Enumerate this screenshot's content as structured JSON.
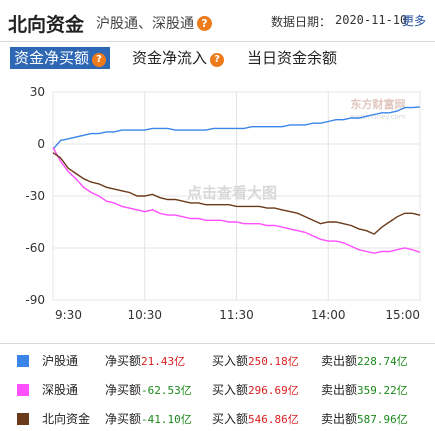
{
  "header": {
    "title": "北向资金",
    "subtitle": "沪股通、深股通",
    "date_label": "数据日期：",
    "date": "2020-11-10",
    "more": "更多"
  },
  "tabs": [
    {
      "label": "资金净买额",
      "active": true
    },
    {
      "label": "资金净流入",
      "active": false
    },
    {
      "label": "当日资金余额",
      "active": false
    }
  ],
  "watermark": {
    "text": "点击查看大图",
    "logo": "东方财富网",
    "logo_sub": "eastmoney.com"
  },
  "chart_data": {
    "type": "line",
    "x_ticks": [
      "9:30",
      "10:30",
      "11:30",
      "14:00",
      "15:00"
    ],
    "y_ticks": [
      30,
      0,
      -30,
      -60,
      -90
    ],
    "ylim": [
      -90,
      30
    ],
    "grid": true,
    "x": [
      "9:30",
      "9:35",
      "9:40",
      "9:45",
      "9:50",
      "9:55",
      "10:00",
      "10:05",
      "10:10",
      "10:15",
      "10:20",
      "10:25",
      "10:30",
      "10:35",
      "10:40",
      "10:45",
      "10:50",
      "10:55",
      "11:00",
      "11:05",
      "11:10",
      "11:15",
      "11:20",
      "11:25",
      "11:30",
      "13:05",
      "13:10",
      "13:15",
      "13:20",
      "13:25",
      "13:30",
      "13:35",
      "13:40",
      "13:45",
      "13:50",
      "13:55",
      "14:00",
      "14:05",
      "14:10",
      "14:15",
      "14:20",
      "14:25",
      "14:30",
      "14:35",
      "14:40",
      "14:45",
      "14:50",
      "14:55",
      "15:00"
    ],
    "series": [
      {
        "name": "沪股通",
        "color": "#3a86e8",
        "values": [
          -3,
          2,
          3,
          4,
          5,
          6,
          6,
          7,
          7,
          8,
          8,
          8,
          8,
          9,
          9,
          9,
          8,
          8,
          8,
          8,
          8,
          9,
          9,
          9,
          9,
          9,
          10,
          10,
          10,
          10,
          10,
          11,
          11,
          11,
          12,
          12,
          13,
          14,
          14,
          15,
          15,
          16,
          17,
          18,
          18,
          19,
          21,
          21,
          21.43
        ]
      },
      {
        "name": "深股通",
        "color": "#ff4fff",
        "values": [
          -2,
          -10,
          -16,
          -20,
          -25,
          -28,
          -30,
          -33,
          -34,
          -36,
          -37,
          -38,
          -39,
          -38,
          -40,
          -41,
          -41,
          -42,
          -43,
          -43,
          -44,
          -44,
          -44,
          -45,
          -45,
          -46,
          -46,
          -46,
          -47,
          -47,
          -48,
          -49,
          -50,
          -51,
          -53,
          -55,
          -56,
          -56,
          -57,
          -59,
          -61,
          -62,
          -63,
          -62,
          -62,
          -61,
          -60,
          -61,
          -62.53
        ]
      },
      {
        "name": "北向资金",
        "color": "#6b3a1a",
        "values": [
          -5,
          -8,
          -14,
          -17,
          -20,
          -22,
          -23,
          -25,
          -26,
          -27,
          -28,
          -30,
          -30,
          -29,
          -31,
          -32,
          -32,
          -33,
          -34,
          -34,
          -35,
          -35,
          -35,
          -35,
          -36,
          -36,
          -36,
          -36,
          -37,
          -37,
          -38,
          -39,
          -40,
          -42,
          -44,
          -46,
          -45,
          -45,
          -46,
          -47,
          -49,
          -50,
          -52,
          -48,
          -45,
          -42,
          -40,
          -40,
          -41.1
        ]
      }
    ]
  },
  "legend": [
    {
      "name": "沪股通",
      "color": "#3a86e8",
      "net_label": "净买额",
      "net": "21.43亿",
      "buy_label": "买入额",
      "buy": "250.18亿",
      "sell_label": "卖出额",
      "sell": "228.74亿"
    },
    {
      "name": "深股通",
      "color": "#ff4fff",
      "net_label": "净买额",
      "net": "-62.53亿",
      "buy_label": "买入额",
      "buy": "296.69亿",
      "sell_label": "卖出额",
      "sell": "359.22亿"
    },
    {
      "name": "北向资金",
      "color": "#6b3a1a",
      "net_label": "净买额",
      "net": "-41.10亿",
      "buy_label": "买入额",
      "buy": "546.86亿",
      "sell_label": "卖出额",
      "sell": "587.96亿"
    }
  ]
}
